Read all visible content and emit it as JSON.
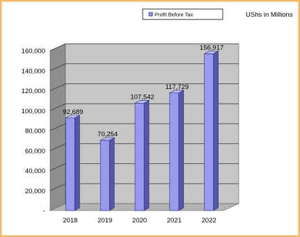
{
  "chart_data": {
    "type": "bar",
    "categories": [
      "2018",
      "2019",
      "2020",
      "2021",
      "2022"
    ],
    "series": [
      {
        "name": "Profit Before Tax",
        "values": [
          92689,
          70254,
          107542,
          117729,
          156917
        ],
        "data_labels": [
          "92,689",
          "70,254",
          "107,542",
          "117,729",
          "156,917"
        ]
      }
    ],
    "unit_note": "UShs in Millions",
    "ylim": [
      0,
      160000
    ],
    "yticks": [
      0,
      20000,
      40000,
      60000,
      80000,
      100000,
      120000,
      140000,
      160000
    ],
    "ytick_labels": [
      "-",
      "20,000",
      "40,000",
      "60,000",
      "80,000",
      "100,000",
      "120,000",
      "140,000",
      "160,000"
    ],
    "grid": true,
    "legend_position": "top",
    "colors": {
      "bar_front": "#9999ee",
      "bar_side": "#5656a8",
      "bar_top": "#b9b9f5",
      "bar_outline": "#2a2a6e",
      "back_wall": "#c6c6c6",
      "side_wall": "#8e8e8e",
      "floor": "#b4b4b4",
      "border": "#f2b866"
    }
  }
}
